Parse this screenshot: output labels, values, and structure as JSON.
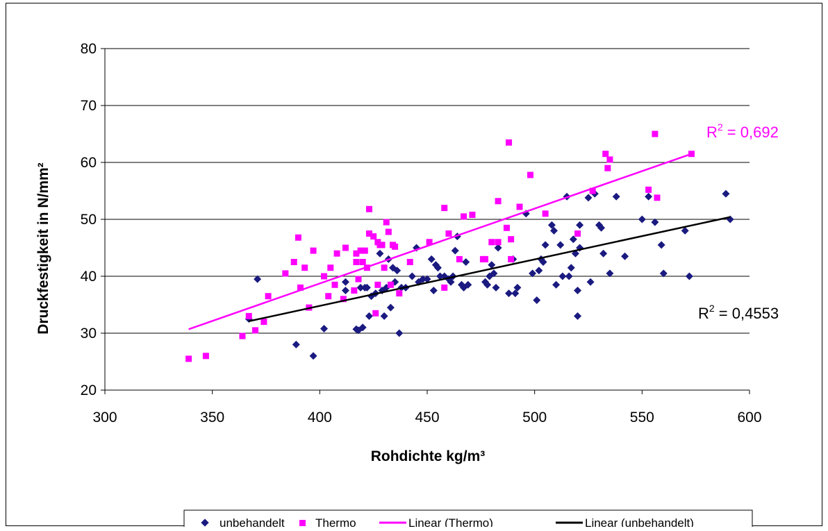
{
  "colors": {
    "unbehandelt": "#1a1a80",
    "thermo": "#ff00ff",
    "trend_thermo": "#ff00ff",
    "trend_unbehandelt": "#000000"
  },
  "chart_data": {
    "type": "scatter",
    "xlabel": "Rohdichte kg/m³",
    "ylabel": "Druckfestigkeit in N/mm²",
    "xlim": [
      300,
      600
    ],
    "ylim": [
      20,
      80
    ],
    "xticks": [
      "300",
      "350",
      "400",
      "450",
      "500",
      "550",
      "600"
    ],
    "yticks": [
      "20",
      "30",
      "40",
      "50",
      "60",
      "70",
      "80"
    ],
    "grid": "horizontal",
    "legend_position": "bottom",
    "series": [
      {
        "name": "unbehandelt",
        "marker": "diamond",
        "points": [
          [
            367,
            32.5
          ],
          [
            371,
            39.5
          ],
          [
            389,
            28
          ],
          [
            397,
            26
          ],
          [
            402,
            30.8
          ],
          [
            412,
            39
          ],
          [
            412,
            37.5
          ],
          [
            417,
            30.7
          ],
          [
            418,
            30.5
          ],
          [
            419,
            38
          ],
          [
            420,
            31
          ],
          [
            421,
            38
          ],
          [
            422,
            38
          ],
          [
            423,
            33
          ],
          [
            424,
            36.5
          ],
          [
            426,
            37
          ],
          [
            428,
            44
          ],
          [
            429,
            37.5
          ],
          [
            430,
            33
          ],
          [
            431,
            38
          ],
          [
            432,
            43
          ],
          [
            433,
            34.5
          ],
          [
            434,
            41.5
          ],
          [
            435,
            39
          ],
          [
            436,
            41
          ],
          [
            437,
            30
          ],
          [
            438,
            38
          ],
          [
            440,
            38
          ],
          [
            443,
            40
          ],
          [
            445,
            45
          ],
          [
            446,
            39
          ],
          [
            448,
            39.5
          ],
          [
            450,
            39.5
          ],
          [
            452,
            43
          ],
          [
            453,
            37.5
          ],
          [
            454,
            42
          ],
          [
            455,
            41.5
          ],
          [
            456,
            40
          ],
          [
            458,
            40
          ],
          [
            460,
            39.5
          ],
          [
            461,
            39
          ],
          [
            462,
            40
          ],
          [
            463,
            44.5
          ],
          [
            464,
            47
          ],
          [
            466,
            38.5
          ],
          [
            467,
            38
          ],
          [
            468,
            42.5
          ],
          [
            469,
            38.5
          ],
          [
            477,
            39
          ],
          [
            478,
            38.5
          ],
          [
            479,
            40
          ],
          [
            480,
            42
          ],
          [
            481,
            40.5
          ],
          [
            482,
            38
          ],
          [
            483,
            45
          ],
          [
            488,
            37
          ],
          [
            490,
            43
          ],
          [
            491,
            37
          ],
          [
            492,
            38
          ],
          [
            496,
            51
          ],
          [
            499,
            40.5
          ],
          [
            501,
            35.8
          ],
          [
            502,
            41
          ],
          [
            503,
            43
          ],
          [
            504,
            42.5
          ],
          [
            505,
            45.5
          ],
          [
            508,
            49
          ],
          [
            509,
            48
          ],
          [
            510,
            38.5
          ],
          [
            512,
            45.5
          ],
          [
            513,
            40
          ],
          [
            515,
            54
          ],
          [
            516,
            40
          ],
          [
            517,
            41.5
          ],
          [
            518,
            46.5
          ],
          [
            519,
            44
          ],
          [
            520,
            33
          ],
          [
            521,
            45
          ],
          [
            521,
            49
          ],
          [
            520,
            37.5
          ],
          [
            525,
            53.8
          ],
          [
            526,
            39
          ],
          [
            528,
            54.5
          ],
          [
            530,
            49
          ],
          [
            531,
            48.5
          ],
          [
            532,
            44
          ],
          [
            535,
            40.5
          ],
          [
            538,
            54
          ],
          [
            542,
            43.5
          ],
          [
            550,
            50
          ],
          [
            553,
            54
          ],
          [
            556,
            49.5
          ],
          [
            559,
            45.5
          ],
          [
            560,
            40.5
          ],
          [
            570,
            48
          ],
          [
            572,
            40
          ],
          [
            589,
            54.5
          ],
          [
            591,
            50
          ]
        ]
      },
      {
        "name": "Thermo",
        "marker": "square",
        "points": [
          [
            339,
            25.5
          ],
          [
            347,
            26
          ],
          [
            364,
            29.5
          ],
          [
            367,
            33
          ],
          [
            370,
            30.5
          ],
          [
            374,
            32
          ],
          [
            376,
            36.5
          ],
          [
            384,
            40.5
          ],
          [
            388,
            42.5
          ],
          [
            390,
            46.8
          ],
          [
            391,
            38
          ],
          [
            393,
            41.5
          ],
          [
            395,
            34.5
          ],
          [
            397,
            44.5
          ],
          [
            402,
            40
          ],
          [
            404,
            36.5
          ],
          [
            405,
            41.5
          ],
          [
            407,
            38.5
          ],
          [
            408,
            44
          ],
          [
            411,
            36
          ],
          [
            412,
            45
          ],
          [
            416,
            37.5
          ],
          [
            417,
            42.5
          ],
          [
            417,
            44
          ],
          [
            418,
            39.5
          ],
          [
            419,
            44.5
          ],
          [
            420,
            42.5
          ],
          [
            421,
            44.5
          ],
          [
            422,
            41.5
          ],
          [
            423,
            51.8
          ],
          [
            423,
            47.5
          ],
          [
            425,
            47
          ],
          [
            426,
            33.5
          ],
          [
            427,
            46
          ],
          [
            427,
            38.5
          ],
          [
            428,
            45.5
          ],
          [
            429,
            45.5
          ],
          [
            430,
            41.5
          ],
          [
            431,
            49.5
          ],
          [
            432,
            47.8
          ],
          [
            433,
            38.5
          ],
          [
            434,
            45.5
          ],
          [
            435,
            45.2
          ],
          [
            437,
            37
          ],
          [
            442,
            42.5
          ],
          [
            451,
            46
          ],
          [
            458,
            52
          ],
          [
            458,
            38
          ],
          [
            460,
            47.5
          ],
          [
            465,
            43
          ],
          [
            467,
            50.5
          ],
          [
            471,
            50.8
          ],
          [
            476,
            43
          ],
          [
            477,
            43
          ],
          [
            480,
            46
          ],
          [
            483,
            53.2
          ],
          [
            483,
            46
          ],
          [
            487,
            48.5
          ],
          [
            488,
            63.5
          ],
          [
            489,
            46.5
          ],
          [
            489,
            43
          ],
          [
            493,
            52.2
          ],
          [
            498,
            57.8
          ],
          [
            505,
            51
          ],
          [
            520,
            47.5
          ],
          [
            527,
            55
          ],
          [
            533,
            61.5
          ],
          [
            534,
            59
          ],
          [
            535,
            60.5
          ],
          [
            553,
            55.2
          ],
          [
            556,
            65
          ],
          [
            557,
            53.8
          ],
          [
            573,
            61.5
          ]
        ]
      },
      {
        "name": "Linear (Thermo)",
        "type": "line",
        "x": [
          339,
          573
        ],
        "y": [
          30.7,
          61.5
        ],
        "r2_label": "R² = 0,692"
      },
      {
        "name": "Linear (unbehandelt)",
        "type": "line",
        "x": [
          367,
          591
        ],
        "y": [
          32.1,
          50.4
        ],
        "r2_label": "R² = 0,4553"
      }
    ],
    "r2_text": {
      "thermo": {
        "r": "R",
        "sup": "2",
        "rest": " = 0,692"
      },
      "unbehandelt": {
        "r": "R",
        "sup": "2",
        "rest": " = 0,4553"
      }
    },
    "legend": [
      "unbehandelt",
      "Thermo",
      "Linear (Thermo)",
      "Linear (unbehandelt)"
    ]
  }
}
